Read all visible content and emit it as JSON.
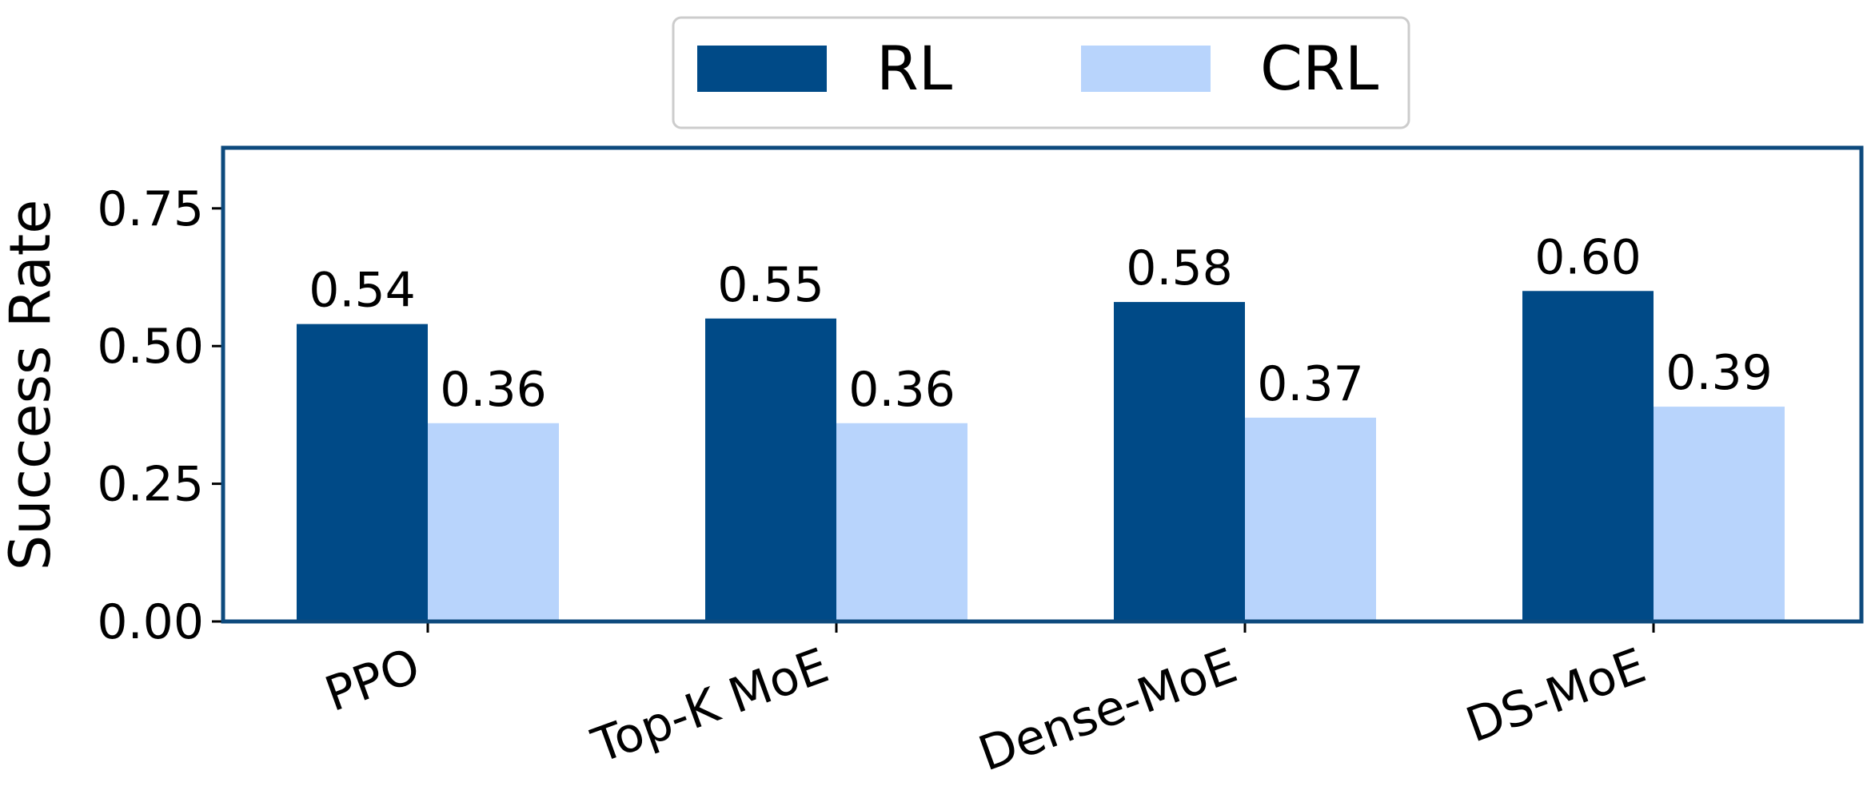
{
  "chart_data": {
    "type": "bar",
    "categories": [
      "PPO",
      "Top-K MoE",
      "Dense-MoE",
      "DS-MoE"
    ],
    "series": [
      {
        "name": "RL",
        "values": [
          0.54,
          0.55,
          0.58,
          0.6
        ],
        "labels": [
          "0.54",
          "0.55",
          "0.58",
          "0.60"
        ],
        "color": "#004a87"
      },
      {
        "name": "CRL",
        "values": [
          0.36,
          0.36,
          0.37,
          0.39
        ],
        "labels": [
          "0.36",
          "0.36",
          "0.37",
          "0.39"
        ],
        "color": "#b8d4fc"
      }
    ],
    "title": "",
    "xlabel": "",
    "ylabel": "Success Rate",
    "ylim": [
      0,
      0.86
    ],
    "yticks": [
      0.0,
      0.25,
      0.5,
      0.75
    ],
    "ytick_labels": [
      "0.00",
      "0.25",
      "0.50",
      "0.75"
    ],
    "legend_position": "top-center",
    "grid": false,
    "frame_color": "#0d4a7d"
  }
}
